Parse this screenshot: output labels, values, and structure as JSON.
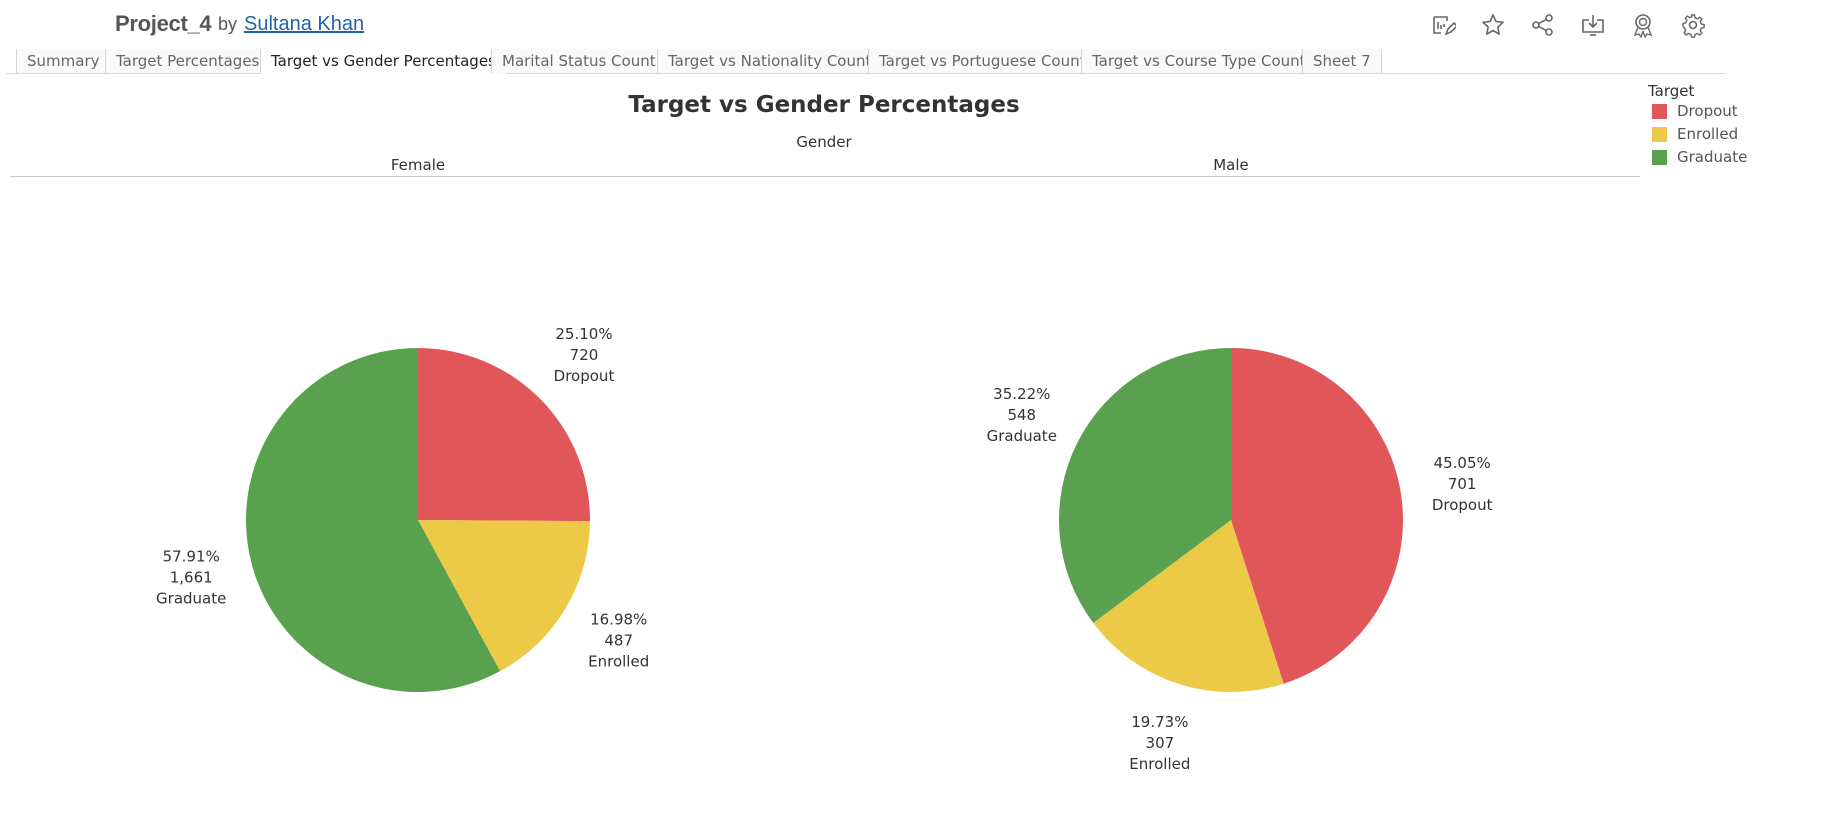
{
  "header": {
    "project": "Project_4",
    "by": "by",
    "author": "Sultana Khan"
  },
  "toolbar_icons": [
    "edit-icon",
    "star-icon",
    "share-icon",
    "download-icon",
    "badge-icon",
    "gear-icon"
  ],
  "tabs": [
    {
      "label": "Summary",
      "active": false
    },
    {
      "label": "Target Percentages",
      "active": false
    },
    {
      "label": "Target vs Gender Percentages",
      "active": true
    },
    {
      "label": "Marital Status Count",
      "active": false
    },
    {
      "label": "Target vs Nationality Count",
      "active": false
    },
    {
      "label": "Target vs Portuguese Count",
      "active": false
    },
    {
      "label": "Target vs Course Type Count",
      "active": false
    },
    {
      "label": "Sheet 7",
      "active": false
    }
  ],
  "view": {
    "title": "Target vs Gender Percentages",
    "column_header": "Gender"
  },
  "legend": {
    "title": "Target",
    "items": [
      {
        "label": "Dropout",
        "color": "#e15759"
      },
      {
        "label": "Enrolled",
        "color": "#edc948"
      },
      {
        "label": "Graduate",
        "color": "#59a14f"
      }
    ]
  },
  "chart_data": {
    "type": "pie",
    "title": "Target vs Gender Percentages",
    "facet_label": "Gender",
    "categories": [
      "Dropout",
      "Enrolled",
      "Graduate"
    ],
    "colors": {
      "Dropout": "#e15759",
      "Enrolled": "#edc948",
      "Graduate": "#59a14f"
    },
    "series": [
      {
        "name": "Female",
        "counts": [
          720,
          487,
          1661
        ],
        "percent_labels": [
          "25.10%",
          "16.98%",
          "57.91%"
        ],
        "count_labels": [
          "720",
          "487",
          "1,661"
        ]
      },
      {
        "name": "Male",
        "counts": [
          701,
          307,
          548
        ],
        "percent_labels": [
          "45.05%",
          "19.73%",
          "35.22%"
        ],
        "count_labels": [
          "701",
          "307",
          "548"
        ]
      }
    ],
    "legend_position": "top-right"
  }
}
